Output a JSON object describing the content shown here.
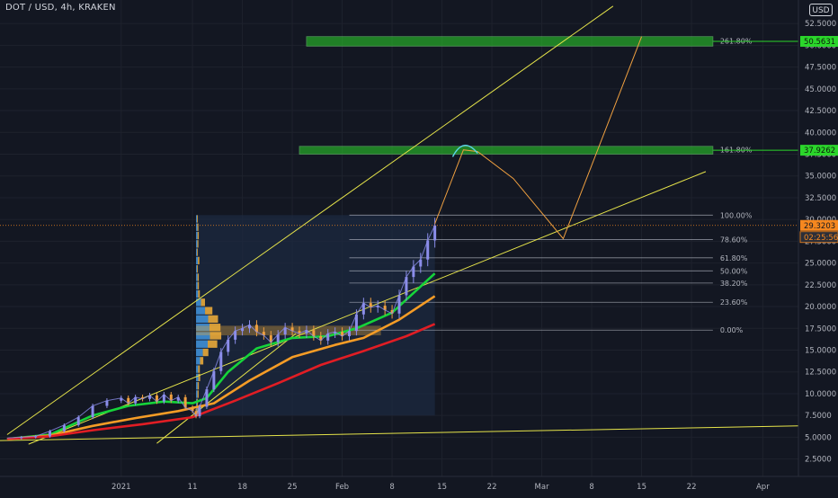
{
  "header": {
    "title": "DOT / USD, 4h, KRAKEN",
    "currency_button": "USD"
  },
  "colors": {
    "background": "#131722",
    "axis_text": "#b2b5be",
    "grid": "#1e222d",
    "candle_up": "#8b8dea",
    "candle_down": "#f0a040",
    "trend": "#e6e44a",
    "projection": "#f0a040",
    "ema_fast": "#16d43a",
    "ema_mid": "#f59c26",
    "ema_slow": "#e11d24",
    "fib_line": "#b8bcc8",
    "zone_fill": "#2bd62b",
    "price_label": "#f5871f",
    "target_label": "#2bd62b",
    "profile_blue": "#3f8fd6",
    "profile_orange": "#e8a83a"
  },
  "chart_data": {
    "type": "line",
    "title": "DOT / USD, 4h, KRAKEN",
    "y_axis": {
      "ticks": [
        "52.5000",
        "50.0000",
        "47.5000",
        "45.0000",
        "42.5000",
        "40.0000",
        "37.5000",
        "35.0000",
        "32.5000",
        "30.0000",
        "27.5000",
        "25.0000",
        "22.5000",
        "20.0000",
        "17.5000",
        "15.0000",
        "12.5000",
        "10.0000",
        "7.5000",
        "5.0000",
        "2.5000"
      ],
      "tick_values": [
        52.5,
        50,
        47.5,
        45,
        42.5,
        40,
        37.5,
        35,
        32.5,
        30,
        27.5,
        25,
        22.5,
        20,
        17.5,
        15,
        12.5,
        10,
        7.5,
        5,
        2.5
      ],
      "range": [
        0.5,
        55.2
      ]
    },
    "x_axis": {
      "ticks": [
        "2021",
        "11",
        "18",
        "25",
        "Feb",
        "8",
        "15",
        "22",
        "Mar",
        "8",
        "15",
        "22",
        "Apr"
      ],
      "tick_days": [
        0,
        10,
        17,
        24,
        31,
        38,
        45,
        52,
        59,
        66,
        73,
        80,
        90
      ],
      "range_days": [
        -17,
        95
      ]
    },
    "price_series": [
      [
        -16,
        4.9
      ],
      [
        -14,
        5.0
      ],
      [
        -12,
        5.1
      ],
      [
        -10,
        5.7
      ],
      [
        -8,
        6.4
      ],
      [
        -6,
        7.3
      ],
      [
        -4,
        8.6
      ],
      [
        -2,
        9.2
      ],
      [
        0,
        9.5
      ],
      [
        1,
        8.9
      ],
      [
        2,
        9.6
      ],
      [
        3,
        9.4
      ],
      [
        4,
        9.8
      ],
      [
        5,
        9.1
      ],
      [
        6,
        9.9
      ],
      [
        7,
        9.2
      ],
      [
        8,
        9.6
      ],
      [
        9,
        8.4
      ],
      [
        10,
        8.0
      ],
      [
        10.5,
        7.4
      ],
      [
        11,
        8.5
      ],
      [
        12,
        10.5
      ],
      [
        13,
        12.6
      ],
      [
        14,
        14.8
      ],
      [
        15,
        16.2
      ],
      [
        16,
        17.2
      ],
      [
        17,
        17.5
      ],
      [
        18,
        17.9
      ],
      [
        19,
        17.1
      ],
      [
        20,
        16.7
      ],
      [
        21,
        15.9
      ],
      [
        22,
        16.8
      ],
      [
        23,
        17.6
      ],
      [
        24,
        17.2
      ],
      [
        25,
        16.9
      ],
      [
        26,
        17.3
      ],
      [
        27,
        16.6
      ],
      [
        28,
        16.1
      ],
      [
        29,
        16.9
      ],
      [
        30,
        17.1
      ],
      [
        31,
        16.6
      ],
      [
        32,
        17.2
      ],
      [
        33,
        19.1
      ],
      [
        34,
        20.4
      ],
      [
        35,
        19.9
      ],
      [
        36,
        20.1
      ],
      [
        37,
        19.6
      ],
      [
        38,
        19.2
      ],
      [
        39,
        21.3
      ],
      [
        40,
        23.4
      ],
      [
        41,
        24.6
      ],
      [
        42,
        25.4
      ],
      [
        43,
        27.6
      ],
      [
        44,
        29.32
      ]
    ],
    "ema_series": [
      {
        "name": "",
        "color_key": "ema_fast",
        "points": [
          [
            -16,
            4.8
          ],
          [
            -10,
            5.3
          ],
          [
            -4,
            7.5
          ],
          [
            1,
            8.6
          ],
          [
            6,
            9.1
          ],
          [
            10,
            8.9
          ],
          [
            12,
            9.5
          ],
          [
            15,
            12.5
          ],
          [
            19,
            15.2
          ],
          [
            24,
            16.4
          ],
          [
            29,
            16.6
          ],
          [
            33,
            17.5
          ],
          [
            38,
            19.3
          ],
          [
            44,
            23.8
          ]
        ]
      },
      {
        "name": "",
        "color_key": "ema_mid",
        "points": [
          [
            -16,
            4.8
          ],
          [
            -10,
            5.2
          ],
          [
            -4,
            6.3
          ],
          [
            2,
            7.2
          ],
          [
            8,
            8.0
          ],
          [
            13,
            8.9
          ],
          [
            18,
            11.5
          ],
          [
            24,
            14.2
          ],
          [
            30,
            15.6
          ],
          [
            34,
            16.4
          ],
          [
            39,
            18.5
          ],
          [
            44,
            21.2
          ]
        ]
      },
      {
        "name": "",
        "color_key": "ema_slow",
        "points": [
          [
            -16,
            4.8
          ],
          [
            -10,
            5.1
          ],
          [
            -4,
            5.8
          ],
          [
            3,
            6.5
          ],
          [
            10,
            7.3
          ],
          [
            16,
            9.2
          ],
          [
            22,
            11.2
          ],
          [
            28,
            13.3
          ],
          [
            34,
            14.9
          ],
          [
            40,
            16.6
          ],
          [
            44,
            18.0
          ]
        ]
      }
    ],
    "trendlines": [
      {
        "from": [
          -16,
          5.3
        ],
        "to": [
          69,
          54.5
        ]
      },
      {
        "from": [
          -13,
          4.2
        ],
        "to": [
          82,
          35.5
        ]
      },
      {
        "from": [
          -18,
          4.6
        ],
        "to": [
          95,
          6.3
        ]
      },
      {
        "from": [
          5,
          4.3
        ],
        "to": [
          24.5,
          16.9
        ]
      }
    ],
    "projection_path": [
      [
        44,
        29.5
      ],
      [
        48,
        38.0
      ],
      [
        50,
        37.8
      ],
      [
        55,
        34.7
      ],
      [
        62,
        27.8
      ],
      [
        73,
        51.0
      ]
    ],
    "fibonacci": {
      "levels": [
        {
          "label": "261.80%",
          "value": 50.5
        },
        {
          "label": "161.80%",
          "value": 38.0
        },
        {
          "label": "100.00%",
          "value": 30.5
        },
        {
          "label": "78.60%",
          "value": 27.7
        },
        {
          "label": "61.80%",
          "value": 25.6
        },
        {
          "label": "50.00%",
          "value": 24.1
        },
        {
          "label": "38.20%",
          "value": 22.7
        },
        {
          "label": "23.60%",
          "value": 20.5
        },
        {
          "label": "0.00%",
          "value": 17.3
        }
      ],
      "range_days": [
        32,
        83
      ]
    },
    "target_zones": [
      {
        "label": "37.9262",
        "low": 37.5,
        "high": 38.4,
        "from_day": 25,
        "to_day": 83
      },
      {
        "label": "50.5631",
        "low": 49.9,
        "high": 51.0,
        "from_day": 26,
        "to_day": 83
      }
    ],
    "current_price": {
      "label": "29.3203",
      "value": 29.32,
      "countdown": "02:25:56"
    },
    "volume_profile": {
      "from_day": 10.5,
      "to_day": 44,
      "low": 7.5,
      "high": 30.5
    }
  }
}
